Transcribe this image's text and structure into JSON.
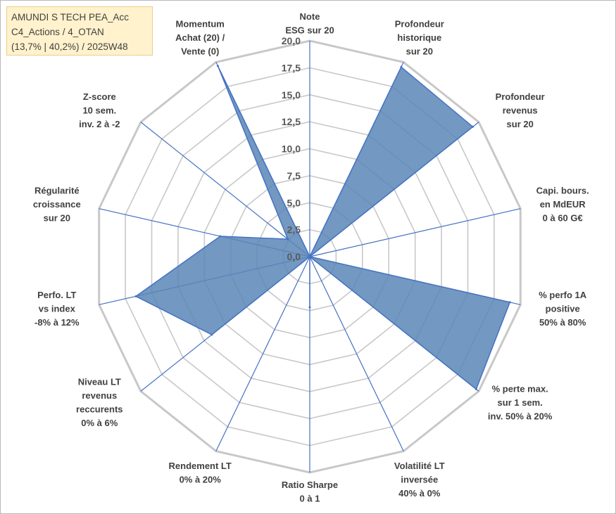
{
  "info_box": {
    "line1": "AMUNDI S TECH PEA_Acc",
    "line2": "C4_Actions / 4_OTAN",
    "line3": "(13,7% | 40,2%) / 2025W48"
  },
  "colors": {
    "fill": "#5b86b6",
    "stroke": "#4472c4",
    "grid": "#c8c8c8",
    "spoke": "#4472c4",
    "info_bg": "#fff2cc"
  },
  "chart_data": {
    "type": "radar",
    "title": "",
    "rmin": 0,
    "rmax": 20,
    "ticks": [
      "0,0",
      "2,5",
      "5,0",
      "7,5",
      "10,0",
      "12,5",
      "15,0",
      "17,5",
      "20,0"
    ],
    "axes": [
      {
        "lines": [
          "Note",
          "ESG sur 20"
        ],
        "value": 0
      },
      {
        "lines": [
          "Profondeur",
          "historique",
          "sur 20"
        ],
        "value": 19.5
      },
      {
        "lines": [
          "Profondeur",
          "revenus",
          "sur 20"
        ],
        "value": 19.3
      },
      {
        "lines": [
          "Capi. bours.",
          "en MdEUR",
          "0 à 60 G€"
        ],
        "value": 0
      },
      {
        "lines": [
          "% perfo 1A",
          "positive",
          "50% à 80%"
        ],
        "value": 19.0
      },
      {
        "lines": [
          "% perte max.",
          "sur 1 sem.",
          "inv. 50% à 20%"
        ],
        "value": 19.7
      },
      {
        "lines": [
          "Volatilité LT",
          "inversée",
          "40% à 0%"
        ],
        "value": 0
      },
      {
        "lines": [
          "Ratio Sharpe",
          "0 à 1"
        ],
        "value": 4.7
      },
      {
        "lines": [
          "Rendement LT",
          "0% à 20%"
        ],
        "value": 0
      },
      {
        "lines": [
          "Niveau LT",
          "revenus",
          "reccurents",
          "0% à 6%"
        ],
        "value": 11.6
      },
      {
        "lines": [
          "Perfo. LT",
          "vs index",
          "-8% à 12%"
        ],
        "value": 16.5
      },
      {
        "lines": [
          "Régularité",
          "croissance",
          "sur 20"
        ],
        "value": 8.5
      },
      {
        "lines": [
          "Z-score",
          "10 sem.",
          "inv. 2 à -2"
        ],
        "value": 2.6
      },
      {
        "lines": [
          "Momentum",
          "Achat (20) /",
          "Vente (0)"
        ],
        "value": 19.6
      }
    ]
  }
}
